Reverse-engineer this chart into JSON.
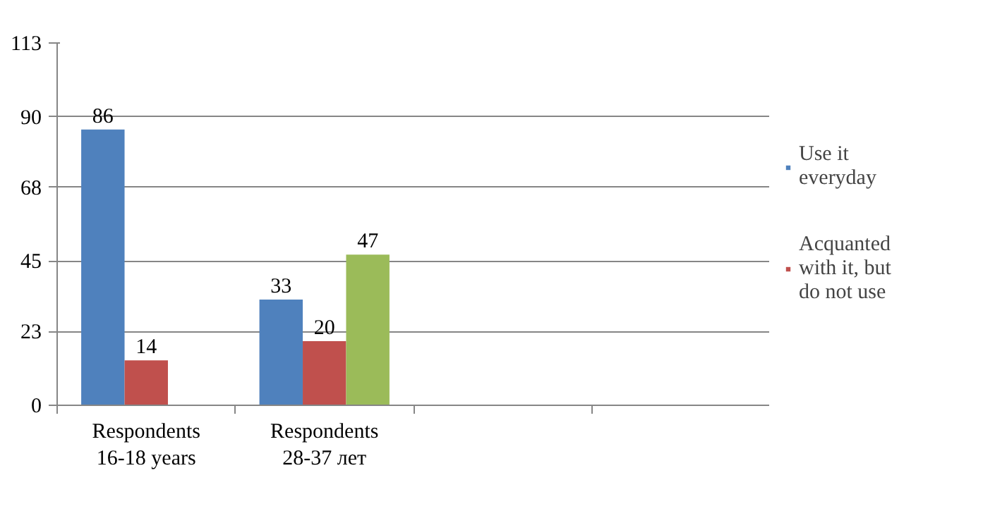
{
  "chart_data": {
    "type": "bar",
    "categories": [
      "Respondents 16-18 years",
      "Respondents 28-37 лет",
      null,
      null
    ],
    "series": [
      {
        "name": "Use it everyday",
        "color": "#4f81bd",
        "values": [
          86,
          33,
          null,
          null
        ]
      },
      {
        "name": "Acquanted with it, but do not use",
        "color": "#c0504d",
        "values": [
          14,
          20,
          null,
          null
        ]
      },
      {
        "color": "#9bbb59",
        "values": [
          null,
          47,
          null,
          null
        ]
      }
    ],
    "ylim": [
      0,
      113
    ],
    "yticks": [
      0,
      23,
      45,
      68,
      90,
      113
    ],
    "grid": "y",
    "legend": "right",
    "data_labels": true
  }
}
